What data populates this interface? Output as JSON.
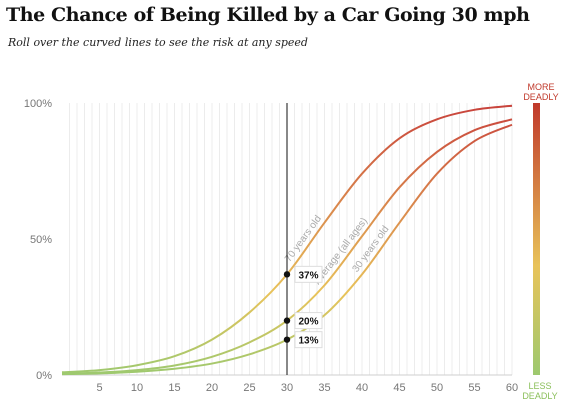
{
  "header": {
    "title": "The Chance of Being Killed by a Car Going 30 mph",
    "subtitle": "Roll over the curved lines to see the risk at any speed"
  },
  "chart_data": {
    "type": "line",
    "title": "The Chance of Being Killed by a Car Going 30 mph",
    "xlabel": "",
    "ylabel": "",
    "xlim": [
      0,
      60
    ],
    "ylim": [
      0,
      100
    ],
    "x_ticks": [
      5,
      10,
      15,
      20,
      25,
      30,
      35,
      40,
      45,
      50,
      55,
      60
    ],
    "y_ticks": [
      {
        "value": 0,
        "label": "0%"
      },
      {
        "value": 50,
        "label": "50%"
      },
      {
        "value": 100,
        "label": "100%"
      }
    ],
    "grid": "vertical lines every 1 mph",
    "x": [
      0,
      5,
      10,
      15,
      20,
      25,
      30,
      35,
      40,
      45,
      50,
      55,
      60
    ],
    "series": [
      {
        "name": "70 years old",
        "color": "#c8413b",
        "values": [
          1,
          1.8,
          3.6,
          6.9,
          13,
          23,
          37,
          56,
          74,
          87,
          94,
          97.5,
          99
        ]
      },
      {
        "name": "Average (all ages)",
        "color": "#cc5a3f",
        "values": [
          0.5,
          0.9,
          1.8,
          3.5,
          6.7,
          12,
          20,
          33,
          51,
          69,
          82,
          90,
          94
        ]
      },
      {
        "name": "30 years old",
        "color": "#c4603f",
        "values": [
          0.3,
          0.6,
          1.2,
          2.3,
          4.2,
          7.6,
          13,
          22,
          37,
          56,
          74,
          86,
          92
        ]
      }
    ],
    "marker": {
      "x": 30,
      "labels": [
        "37%",
        "20%",
        "13%"
      ]
    },
    "legend_bar": {
      "top_label_line1": "MORE",
      "top_label_line2": "DEADLY",
      "bottom_label_line1": "LESS",
      "bottom_label_line2": "DEADLY",
      "top_color": "#c0392b",
      "mid_color": "#e8c35a",
      "bottom_color": "#9dc96f"
    },
    "colors": {
      "red": "#c8413b",
      "yellow": "#e8c35a",
      "green": "#9dc96f",
      "curve_label": "#aaaaaa"
    }
  }
}
